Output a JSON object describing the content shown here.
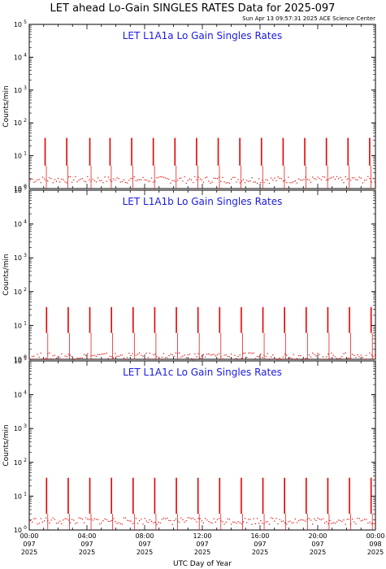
{
  "header": {
    "title": "LET ahead Lo-Gain SINGLES RATES Data for 2025-097",
    "timestamp": "Sun Apr 13 09:57:31 2025 ACE Science Center"
  },
  "chart_data": {
    "type": "line",
    "x_axis": {
      "label": "UTC Day of Year",
      "range_hours": [
        0,
        24
      ],
      "ticks": [
        {
          "time": "00:00",
          "doy": "097",
          "year": "2025"
        },
        {
          "time": "04:00",
          "doy": "097",
          "year": "2025"
        },
        {
          "time": "08:00",
          "doy": "097",
          "year": "2025"
        },
        {
          "time": "12:00",
          "doy": "097",
          "year": "2025"
        },
        {
          "time": "16:00",
          "doy": "097",
          "year": "2025"
        },
        {
          "time": "20:00",
          "doy": "097",
          "year": "2025"
        },
        {
          "time": "00:00",
          "doy": "098",
          "year": "2025"
        }
      ]
    },
    "y_axis": {
      "label": "Counts/min",
      "scale": "log",
      "range": [
        1,
        100000
      ],
      "tick_base": "10",
      "tick_exponents": [
        "0",
        "1",
        "2",
        "3",
        "4",
        "5"
      ]
    },
    "line_color": "#e60000",
    "panels": [
      {
        "title": "LET L1A1a Lo Gain Singles Rates",
        "spike_hours": [
          1.1,
          2.6,
          4.2,
          5.6,
          7.1,
          8.6,
          10.1,
          11.6,
          13.1,
          14.6,
          16.1,
          17.6,
          19.1,
          20.6,
          22.1,
          23.6
        ],
        "spike_peak": 35,
        "spike_base": 5,
        "baseline": 1.5
      },
      {
        "title": "LET L1A1b Lo Gain Singles Rates",
        "spike_hours": [
          1.2,
          2.7,
          4.2,
          5.7,
          7.2,
          8.7,
          10.2,
          11.7,
          13.2,
          14.7,
          16.2,
          17.7,
          19.2,
          20.7,
          22.2,
          23.7
        ],
        "spike_peak": 35,
        "spike_base": 6,
        "baseline": 1
      },
      {
        "title": "LET L1A1c Lo Gain Singles Rates",
        "spike_hours": [
          1.2,
          2.7,
          4.2,
          5.7,
          7.2,
          8.7,
          10.2,
          11.7,
          13.2,
          14.7,
          16.2,
          17.7,
          19.2,
          20.7,
          22.2,
          23.7
        ],
        "spike_peak": 35,
        "spike_base": 3,
        "baseline": 1.5
      }
    ]
  }
}
